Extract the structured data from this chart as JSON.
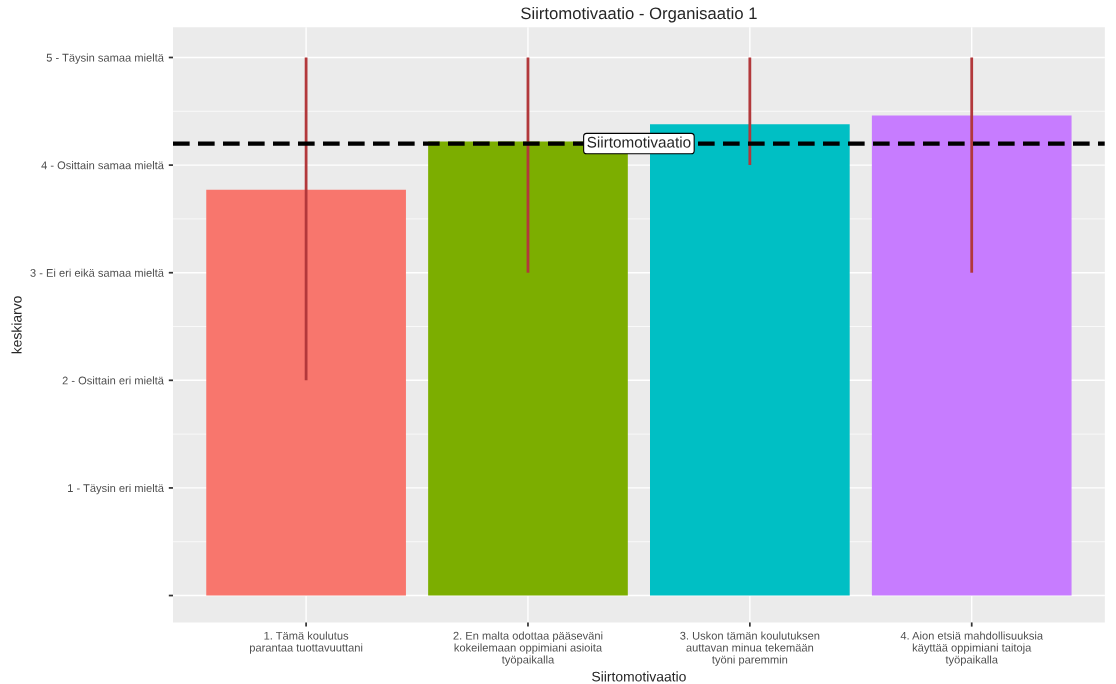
{
  "chart_data": {
    "type": "bar",
    "title": "Siirtomotivaatio - Organisaatio 1",
    "xlabel": "Siirtomotivaatio",
    "ylabel": "keskiarvo",
    "categories": [
      "1. Tämä koulutus\nparantaa tuottavuuttani",
      "2. En malta odottaa pääseväni\nkokeilemaan oppimiani asioita\ntyöpaikalla",
      "3. Uskon tämän koulutuksen\nauttavan minua tekemään\ntyöni paremmin",
      "4. Aion etsiä mahdollisuuksia\nkäyttää oppimiani taitoja\ntyöpaikalla"
    ],
    "values": [
      3.77,
      4.22,
      4.38,
      4.46
    ],
    "colors": [
      "#f8766d",
      "#7cae00",
      "#00bfc4",
      "#c77cff"
    ],
    "errors": [
      [
        2,
        5
      ],
      [
        3,
        5
      ],
      [
        4,
        5
      ],
      [
        3,
        5
      ]
    ],
    "ylim": [
      -0.25,
      5.28
    ],
    "yticks": [
      {
        "value": 0,
        "label": null
      },
      {
        "value": 1,
        "label": "1 - Täysin eri mieltä"
      },
      {
        "value": 2,
        "label": "2 - Osittain eri mieltä"
      },
      {
        "value": 3,
        "label": "3 - Ei eri eikä samaa mieltä"
      },
      {
        "value": 4,
        "label": "4 - Osittain samaa mieltä"
      },
      {
        "value": 5,
        "label": "5 - Täysin samaa mieltä"
      }
    ],
    "ref_lines": [
      {
        "axis": "y",
        "value": 4.2,
        "label": "Siirtomotivaatio",
        "color": "#000000",
        "line_style": "dashed"
      }
    ],
    "grid": true,
    "legend": false
  }
}
